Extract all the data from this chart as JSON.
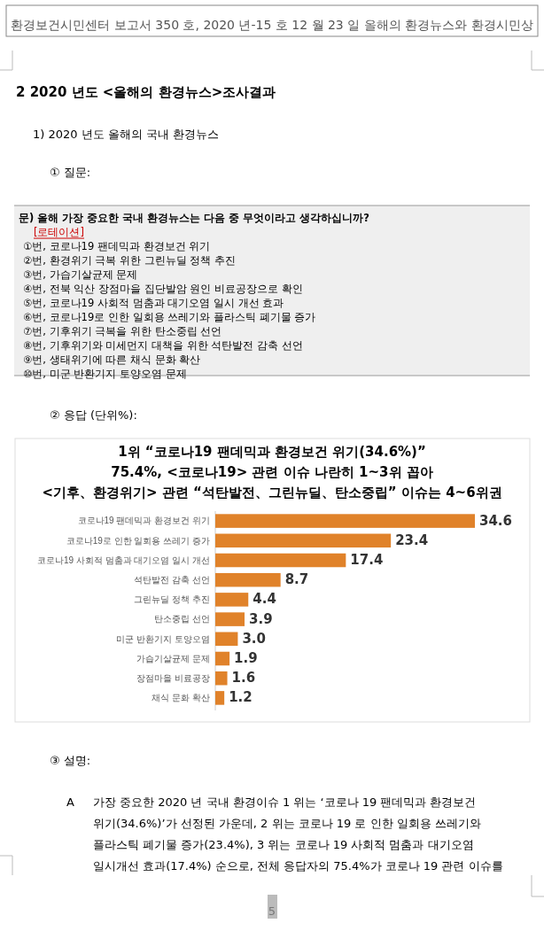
{
  "chart_data": {
    "type": "bar",
    "orientation": "horizontal",
    "data_labels": true,
    "title": "1위 “코로나19 팬데믹과 환경보건 위기(34.6%)”",
    "subtitle": "75.4%, <코로나19> 관련 이슈 나란히 1~3위 꼽아\n<기후、환경위기> 관련 “석탄발전、그린뉴딜、탄소중립” 이슈는 4~6위권",
    "categories": [
      "코로나19 팬데믹과 환경보건 위기",
      "코로나19로 인한 일회용 쓰레기 증가",
      "코로나19 사회적 멈춤과 대기오염 일시 개선",
      "석탄발전 감축 선언",
      "그린뉴딜 정책 추진",
      "탄소중립 선언",
      "미군 반환기지 토양오염",
      "가습기살균제 문제",
      "장점마을 비료공장",
      "채식 문화 확산"
    ],
    "values": [
      34.6,
      23.4,
      17.4,
      8.7,
      4.4,
      3.9,
      3.0,
      1.9,
      1.6,
      1.2
    ],
    "value_labels": [
      "34.6",
      "23.4",
      "17.4",
      "8.7",
      "4.4",
      "3.9",
      "3.0",
      "1.9",
      "1.6",
      "1.2"
    ],
    "color": "#e0822a",
    "annotations": [
      "환경보건시민센터 보고서 350 호, 2020 년-15 호 12 월 23 일 올해의 환경뉴스와 환경시민상",
      "2   2020 년도 <올해의 환경뉴스>조사결과",
      "1)   2020 년도 올해의 국내 환경뉴스",
      "①   질문:",
      "문) 올해 가장 중요한 국내 환경뉴스는 다음 중 무엇이라고 생각하십니까?",
      "[로테이션]",
      "①번, 코로나19 팬데믹과 환경보건 위기",
      "②번, 환경위기 극복 위한 그린뉴딜 정책 추진",
      "③번, 가습기살균제 문제",
      "④번, 전북 익산 장점마을 집단발암 원인 비료공장으로 확인",
      "⑤번, 코로나19 사회적 멈춤과 대기오염 일시 개선 효과",
      "⑥번, 코로나19로 인한 일회용 쓰레기와 플라스틱 폐기물 증가",
      "⑦번, 기후위기 극복을 위한 탄소중립 선언",
      "⑧번, 기후위기와 미세먼지 대책을 위한 석탄발전 감축 선언",
      "⑨번, 생태위기에 따른 채식 문화 확산",
      "⑩번, 미군 반환기지 토양오염 문제",
      "②   응답 (단위%):",
      "③   설명:",
      "A",
      "가장 중요한 2020 년 국내 환경이슈 1 위는 ‘코로나 19 팬데믹과 환경보건",
      "위기(34.6%)’가 선정된 가운데, 2 위는 코로나 19 로 인한 일회용 쓰레기와",
      "플라스틱 폐기물 증가(23.4%), 3 위는 코로나 19 사회적 멈춤과 대기오염",
      "일시개선 효과(17.4%) 순으로, 전체 응답자의 75.4%가 코로나 19 관련 이슈를",
      "5"
    ]
  }
}
